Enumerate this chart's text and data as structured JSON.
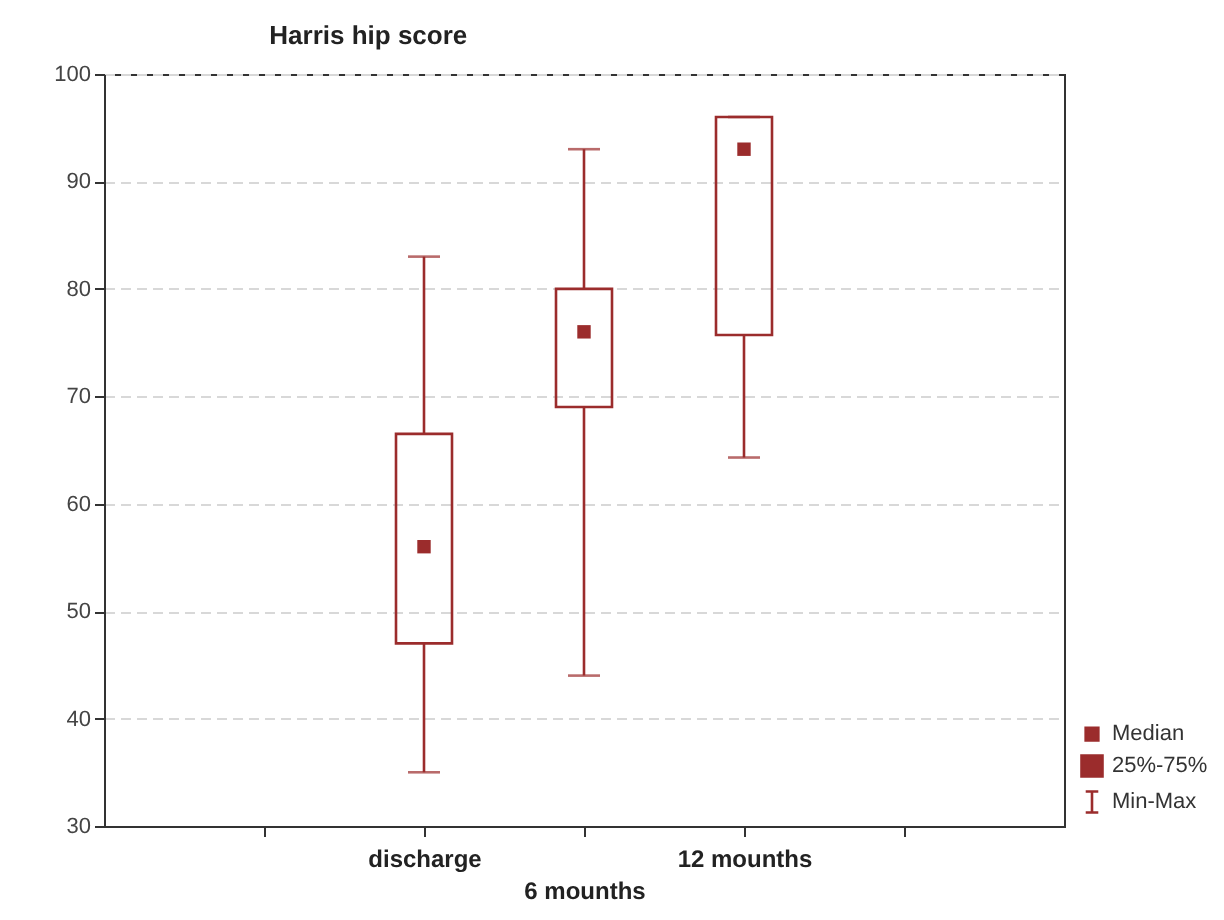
{
  "chart_data": {
    "type": "box",
    "title": "Harris hip score",
    "categories": [
      null,
      "discharge",
      "6 mounths",
      "12 mounths",
      null
    ],
    "series": [
      {
        "color": "#9b2c2c",
        "boxes": [
          null,
          {
            "low": 35,
            "q1": 47,
            "median": 56,
            "q3": 66.5,
            "high": 83
          },
          {
            "low": 44,
            "q1": 69,
            "median": 76,
            "q3": 80,
            "high": 93
          },
          {
            "low": 64.3,
            "q1": 75.7,
            "median": 93,
            "q3": 96,
            "high": 96
          },
          null
        ]
      }
    ],
    "annotations": [
      "Median",
      "25%-75%",
      "Min-Max"
    ],
    "ylim": [
      30,
      100
    ],
    "yticks": [
      30,
      40,
      50,
      60,
      70,
      80,
      90,
      100
    ],
    "grid": "y",
    "marker": "square"
  }
}
